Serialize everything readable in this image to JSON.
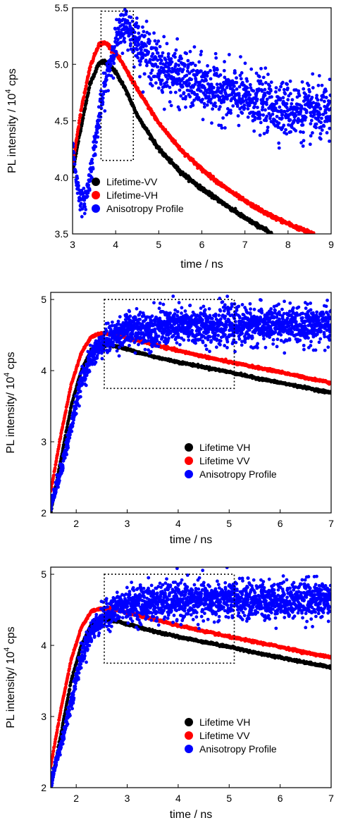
{
  "chart_data": [
    {
      "type": "scatter",
      "xlabel": "time / ns",
      "ylabel": "PL intensity / 10^4 cps",
      "ylabel_main": "PL intensity / 10",
      "ylabel_exp": "4",
      "ylabel_unit": " cps",
      "xlim": [
        3,
        9
      ],
      "ylim": [
        3.5,
        5.5
      ],
      "xticks": [
        "3",
        "4",
        "5",
        "6",
        "7",
        "8",
        "9"
      ],
      "yticks": [
        "3.5",
        "4.0",
        "4.5",
        "5.0",
        "5.5"
      ],
      "legend_position": "lower-left",
      "zoom_box": {
        "x": [
          3.66,
          4.41
        ],
        "y": [
          4.15,
          5.47
        ]
      },
      "series": [
        {
          "name": "Lifetime-VV",
          "color": "#000000",
          "x": [
            3.0,
            3.2,
            3.4,
            3.6,
            3.7,
            3.8,
            4.0,
            4.2,
            4.5,
            5.0,
            5.5,
            6.0,
            6.5,
            7.0,
            7.5,
            7.62
          ],
          "y": [
            4.05,
            4.45,
            4.82,
            5.0,
            5.02,
            5.01,
            4.93,
            4.8,
            4.55,
            4.25,
            4.05,
            3.9,
            3.77,
            3.64,
            3.53,
            3.5
          ]
        },
        {
          "name": "Lifetime-VH",
          "color": "#ff0000",
          "x": [
            3.0,
            3.2,
            3.4,
            3.6,
            3.7,
            3.8,
            4.0,
            4.2,
            4.5,
            5.0,
            5.5,
            6.0,
            6.5,
            7.0,
            7.5,
            8.0,
            8.5,
            8.6
          ],
          "y": [
            4.12,
            4.6,
            4.97,
            5.17,
            5.19,
            5.18,
            5.1,
            4.98,
            4.78,
            4.48,
            4.25,
            4.07,
            3.92,
            3.79,
            3.68,
            3.59,
            3.51,
            3.5
          ]
        },
        {
          "name": "Anisotropy Profile",
          "color": "#0000ff",
          "x": [
            3.0,
            3.1,
            3.2,
            3.3,
            3.4,
            3.6,
            3.8,
            4.0,
            4.2,
            4.3,
            4.5,
            5.0,
            5.5,
            6.0,
            7.0,
            8.0,
            9.0
          ],
          "y": [
            4.3,
            3.95,
            3.78,
            3.8,
            4.0,
            4.5,
            4.9,
            5.2,
            5.35,
            5.32,
            5.2,
            4.98,
            4.88,
            4.8,
            4.7,
            4.6,
            4.55
          ]
        }
      ]
    },
    {
      "type": "scatter",
      "xlabel": "time / ns",
      "ylabel": "PL intensity/ 10^4 cps",
      "ylabel_main": "PL intensity/ 10",
      "ylabel_exp": "4",
      "ylabel_unit": " cps",
      "xlim": [
        1.5,
        7
      ],
      "ylim": [
        2,
        5.1
      ],
      "xticks": [
        "2",
        "3",
        "4",
        "5",
        "6",
        "7"
      ],
      "yticks": [
        "2",
        "3",
        "4",
        "5"
      ],
      "legend_position": "lower-right",
      "zoom_box": {
        "x": [
          2.55,
          5.1
        ],
        "y": [
          3.75,
          5.0
        ]
      },
      "series": [
        {
          "name": "Lifetime VH",
          "color": "#000000",
          "x": [
            1.5,
            1.7,
            1.9,
            2.1,
            2.3,
            2.4,
            2.5,
            2.6,
            2.8,
            3.0,
            3.5,
            4.0,
            4.5,
            5.0,
            5.5,
            6.0,
            6.5,
            7.0
          ],
          "y": [
            2.0,
            2.75,
            3.5,
            4.0,
            4.3,
            4.34,
            4.36,
            4.36,
            4.34,
            4.3,
            4.2,
            4.12,
            4.05,
            3.98,
            3.9,
            3.83,
            3.76,
            3.69
          ]
        },
        {
          "name": "Lifetime VV",
          "color": "#ff0000",
          "x": [
            1.5,
            1.7,
            1.9,
            2.1,
            2.3,
            2.5,
            2.6,
            2.8,
            3.0,
            3.5,
            4.0,
            4.5,
            5.0,
            5.5,
            6.0,
            6.5,
            7.0
          ],
          "y": [
            2.3,
            3.1,
            3.8,
            4.25,
            4.48,
            4.52,
            4.52,
            4.5,
            4.46,
            4.37,
            4.28,
            4.2,
            4.12,
            4.05,
            3.98,
            3.9,
            3.83
          ]
        },
        {
          "name": "Anisotropy Profile",
          "color": "#0000ff",
          "x": [
            1.5,
            1.7,
            1.9,
            2.1,
            2.3,
            2.5,
            2.8,
            3.0,
            3.5,
            4.0,
            5.0,
            6.0,
            7.0
          ],
          "y": [
            2.1,
            2.6,
            3.2,
            3.85,
            4.2,
            4.38,
            4.52,
            4.58,
            4.6,
            4.62,
            4.63,
            4.64,
            4.65
          ]
        }
      ]
    },
    {
      "type": "scatter",
      "xlabel": "time / ns",
      "ylabel": "PL intensity/ 10^4 cps",
      "ylabel_main": "PL intensity/ 10",
      "ylabel_exp": "4",
      "ylabel_unit": " cps",
      "xlim": [
        1.5,
        7
      ],
      "ylim": [
        2,
        5.1
      ],
      "xticks": [
        "2",
        "3",
        "4",
        "5",
        "6",
        "7"
      ],
      "yticks": [
        "2",
        "3",
        "4",
        "5"
      ],
      "legend_position": "lower-right",
      "zoom_box": {
        "x": [
          2.55,
          5.1
        ],
        "y": [
          3.75,
          5.0
        ]
      },
      "series": [
        {
          "name": "Lifetime VH",
          "color": "#000000",
          "x": [
            1.5,
            1.7,
            1.9,
            2.1,
            2.3,
            2.4,
            2.5,
            2.6,
            2.8,
            3.0,
            3.5,
            4.0,
            4.5,
            5.0,
            5.5,
            6.0,
            6.5,
            7.0
          ],
          "y": [
            2.0,
            2.75,
            3.5,
            4.0,
            4.3,
            4.34,
            4.36,
            4.36,
            4.34,
            4.3,
            4.2,
            4.12,
            4.05,
            3.98,
            3.9,
            3.83,
            3.76,
            3.69
          ]
        },
        {
          "name": "Lifetime VV",
          "color": "#ff0000",
          "x": [
            1.5,
            1.7,
            1.9,
            2.1,
            2.3,
            2.5,
            2.6,
            2.8,
            3.0,
            3.5,
            4.0,
            4.5,
            5.0,
            5.5,
            6.0,
            6.5,
            7.0
          ],
          "y": [
            2.3,
            3.1,
            3.8,
            4.25,
            4.48,
            4.52,
            4.52,
            4.5,
            4.46,
            4.37,
            4.28,
            4.2,
            4.12,
            4.05,
            3.98,
            3.9,
            3.83
          ]
        },
        {
          "name": "Anisotropy Profile",
          "color": "#0000ff",
          "x": [
            1.5,
            1.7,
            1.9,
            2.1,
            2.3,
            2.5,
            2.8,
            3.0,
            3.5,
            4.0,
            5.0,
            6.0,
            7.0
          ],
          "y": [
            2.1,
            2.6,
            3.2,
            3.85,
            4.2,
            4.38,
            4.52,
            4.58,
            4.6,
            4.62,
            4.63,
            4.64,
            4.65
          ]
        }
      ]
    }
  ]
}
